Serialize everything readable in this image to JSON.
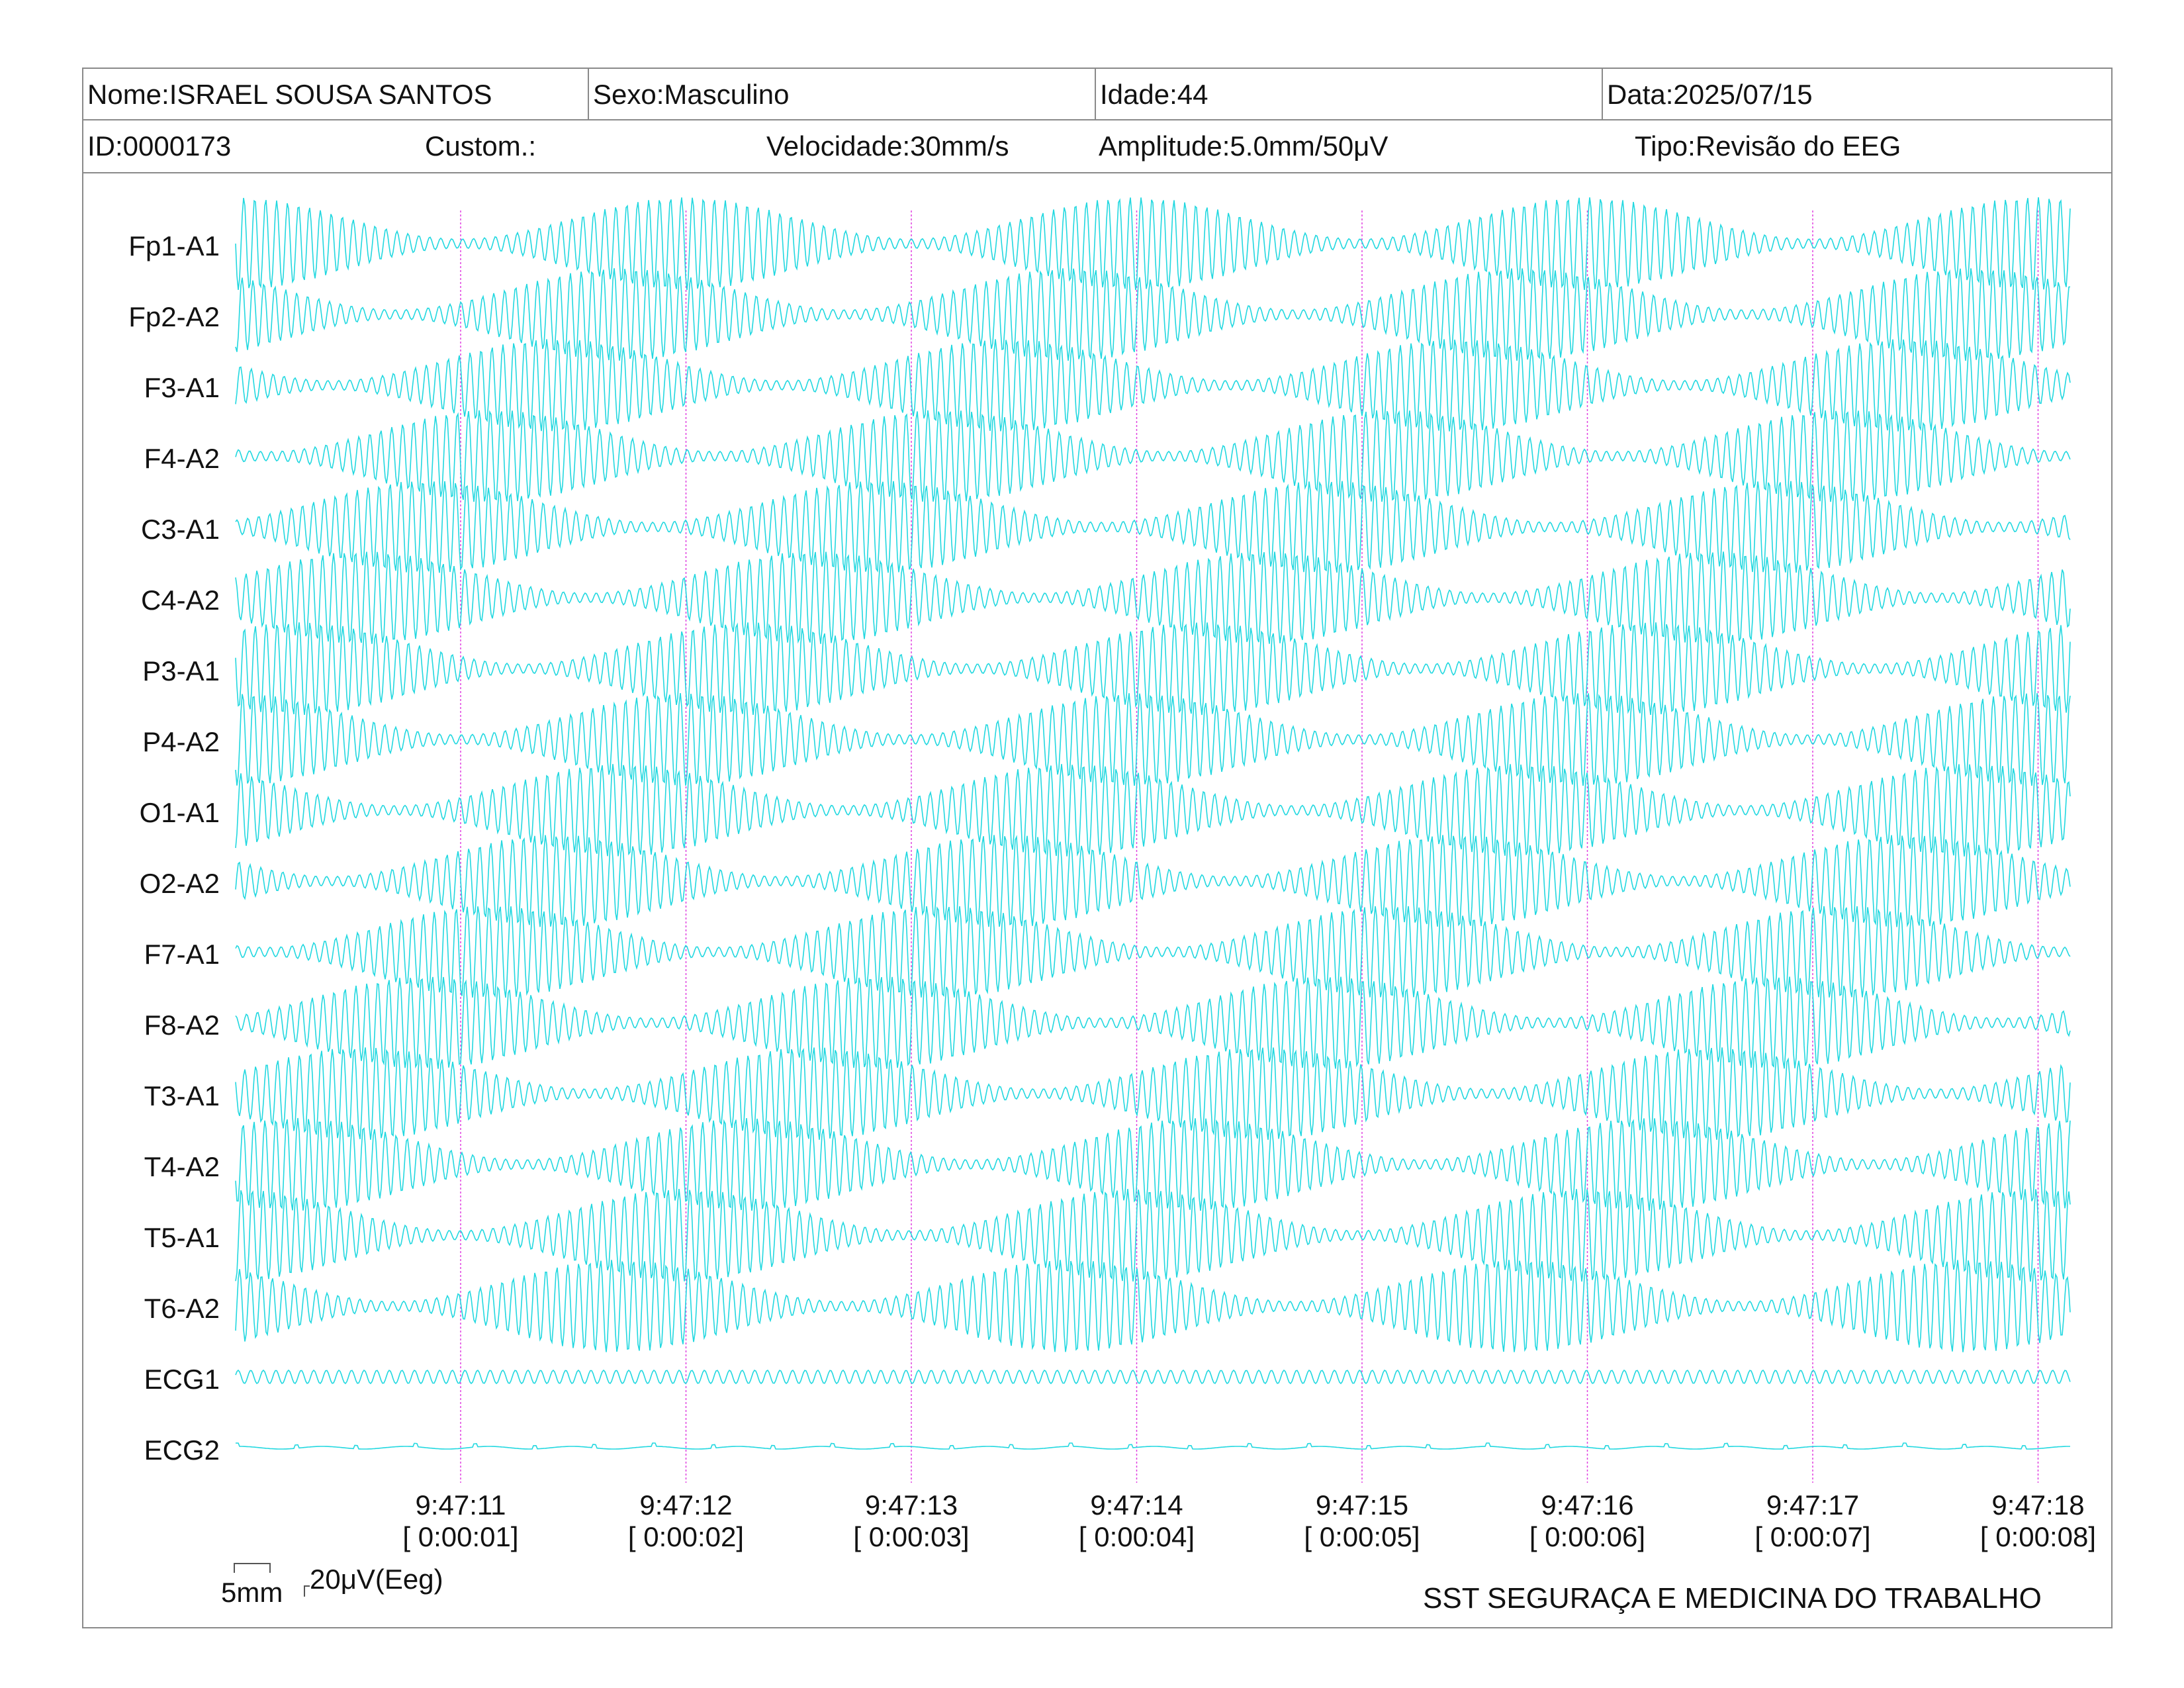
{
  "header": {
    "nome": "Nome:ISRAEL SOUSA SANTOS",
    "sexo": "Sexo:Masculino",
    "idade": "Idade:44",
    "data": "Data:2025/07/15",
    "id": "ID:0000173",
    "custom": "Custom.:",
    "velocidade": "Velocidade:30mm/s",
    "amplitude": "Amplitude:5.0mm/50μV",
    "tipo": "Tipo:Revisão do EEG"
  },
  "channels": [
    "Fp1-A1",
    "Fp2-A2",
    "F3-A1",
    "F4-A2",
    "C3-A1",
    "C4-A2",
    "P3-A1",
    "P4-A2",
    "O1-A1",
    "O2-A2",
    "F7-A1",
    "F8-A2",
    "T3-A1",
    "T4-A2",
    "T5-A1",
    "T6-A2",
    "ECG1",
    "ECG2"
  ],
  "time_marks": [
    {
      "clock": "9:47:11",
      "elapsed": "[ 0:00:01]"
    },
    {
      "clock": "9:47:12",
      "elapsed": "[ 0:00:02]"
    },
    {
      "clock": "9:47:13",
      "elapsed": "[ 0:00:03]"
    },
    {
      "clock": "9:47:14",
      "elapsed": "[ 0:00:04]"
    },
    {
      "clock": "9:47:15",
      "elapsed": "[ 0:00:05]"
    },
    {
      "clock": "9:47:16",
      "elapsed": "[ 0:00:06]"
    },
    {
      "clock": "9:47:17",
      "elapsed": "[ 0:00:07]"
    },
    {
      "clock": "9:47:18",
      "elapsed": "[ 0:00:08]"
    }
  ],
  "scale": {
    "time": "5mm",
    "amplitude": "20μV(Eeg)"
  },
  "footer": "SST SEGURAÇA E MEDICINA DO TRABALHO",
  "colors": {
    "trace": "#22d8e0",
    "marker": "#e040e0",
    "border": "#8a8a8a"
  }
}
